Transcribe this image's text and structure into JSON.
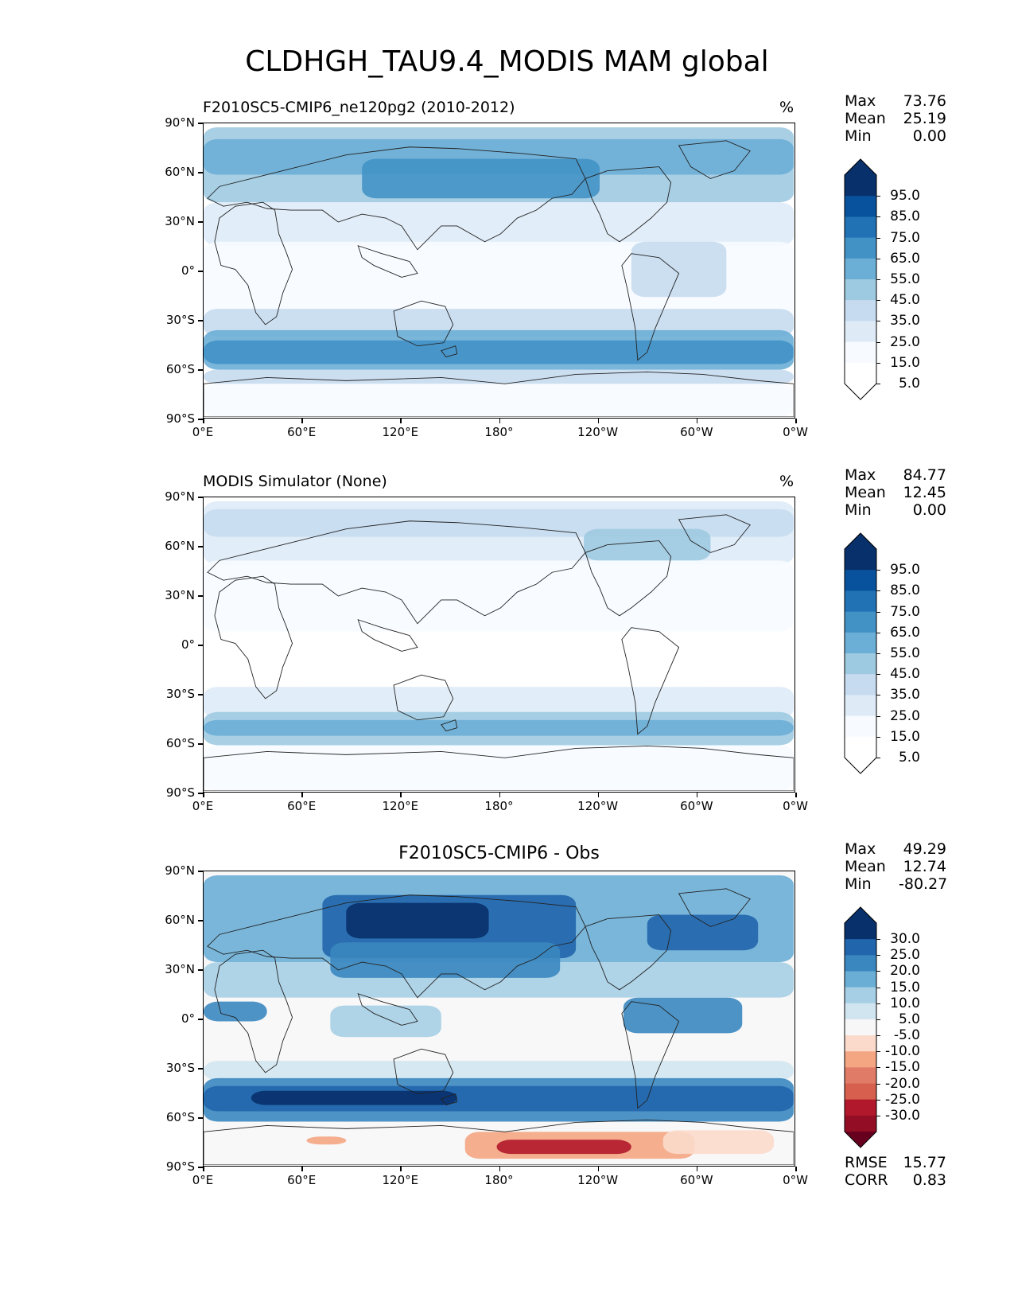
{
  "title": "CLDHGH_TAU9.4_MODIS MAM global",
  "lat_ticks": [
    "90°N",
    "60°N",
    "30°N",
    "0°",
    "30°S",
    "60°S",
    "90°S"
  ],
  "lon_ticks": [
    "0°E",
    "60°E",
    "120°E",
    "180°",
    "120°W",
    "60°W",
    "0°W"
  ],
  "panels": [
    {
      "name": "test",
      "title": "F2010SC5-CMIP6_ne120pg2 (2010-2012)",
      "title_align": "left",
      "units": "%",
      "stats": [
        {
          "label": "Max",
          "value": "73.76"
        },
        {
          "label": "Mean",
          "value": "25.19"
        },
        {
          "label": "Min",
          "value": "0.00"
        }
      ],
      "colorbar": {
        "labels": [
          "95.0",
          "85.0",
          "75.0",
          "65.0",
          "55.0",
          "45.0",
          "35.0",
          "25.0",
          "15.0",
          "5.0"
        ],
        "colors": [
          "#08306b",
          "#08519c",
          "#2171b5",
          "#4292c6",
          "#6baed6",
          "#9ecae1",
          "#c6dbef",
          "#deebf7",
          "#f7fbff",
          "#ffffff"
        ],
        "extend_top": "#08306b",
        "extend_bottom": "#ffffff"
      }
    },
    {
      "name": "reference",
      "title": "MODIS Simulator (None)",
      "title_align": "left",
      "units": "%",
      "stats": [
        {
          "label": "Max",
          "value": "84.77"
        },
        {
          "label": "Mean",
          "value": "12.45"
        },
        {
          "label": "Min",
          "value": "0.00"
        }
      ],
      "colorbar": {
        "labels": [
          "95.0",
          "85.0",
          "75.0",
          "65.0",
          "55.0",
          "45.0",
          "35.0",
          "25.0",
          "15.0",
          "5.0"
        ],
        "colors": [
          "#08306b",
          "#08519c",
          "#2171b5",
          "#4292c6",
          "#6baed6",
          "#9ecae1",
          "#c6dbef",
          "#deebf7",
          "#f7fbff",
          "#ffffff"
        ],
        "extend_top": "#08306b",
        "extend_bottom": "#ffffff"
      }
    },
    {
      "name": "difference",
      "title": "F2010SC5-CMIP6 - Obs",
      "title_align": "center",
      "units": "",
      "stats": [
        {
          "label": "Max",
          "value": "49.29"
        },
        {
          "label": "Mean",
          "value": "12.74"
        },
        {
          "label": "Min",
          "value": "-80.27"
        }
      ],
      "bottom_stats": [
        {
          "label": "RMSE",
          "value": "15.77"
        },
        {
          "label": "CORR",
          "value": "0.83"
        }
      ],
      "colorbar": {
        "labels": [
          "30.0",
          "25.0",
          "20.0",
          "15.0",
          "10.0",
          "5.0",
          "-5.0",
          "-10.0",
          "-15.0",
          "-20.0",
          "-25.0",
          "-30.0"
        ],
        "colors": [
          "#08306b",
          "#2166ac",
          "#3a87c0",
          "#6aaed6",
          "#a6cee4",
          "#d1e5f0",
          "#f7f7f7",
          "#fbdacb",
          "#f4a582",
          "#e07b67",
          "#d6604d",
          "#b2182b",
          "#930e25"
        ],
        "extend_top": "#08306b",
        "extend_bottom": "#67001f"
      }
    }
  ]
}
